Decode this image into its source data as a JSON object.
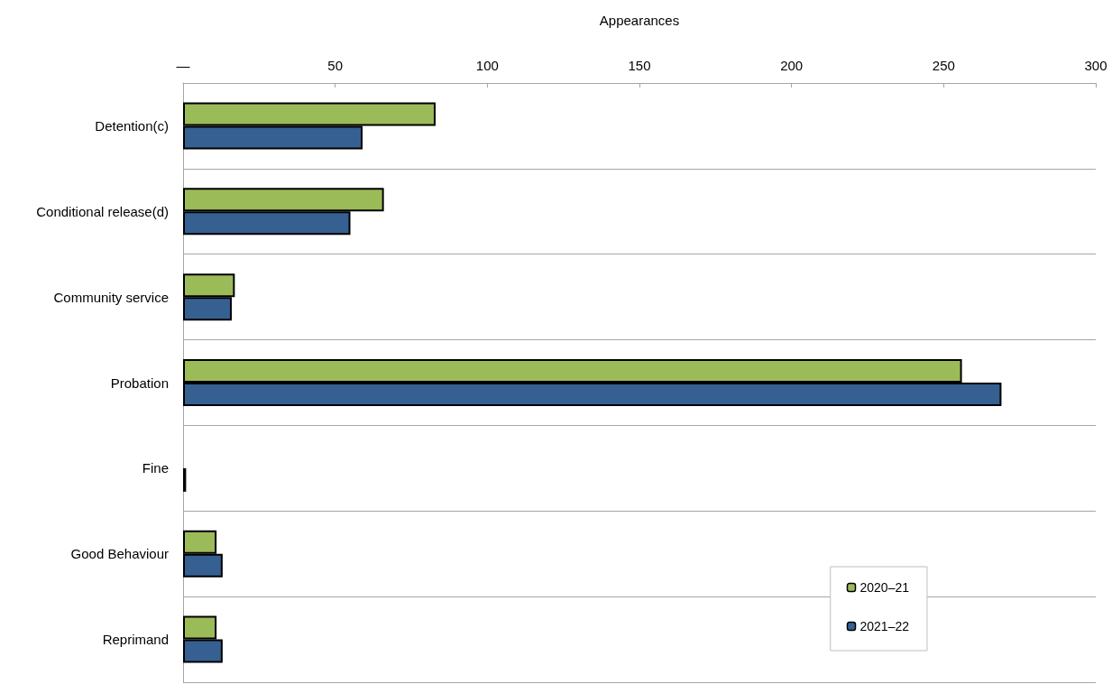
{
  "chart_data": {
    "type": "bar",
    "orientation": "horizontal",
    "xlabel": "Appearances",
    "categories": [
      "Detention(c)",
      "Conditional release(d)",
      "Community service",
      "Probation",
      "Fine",
      "Good Behaviour",
      "Reprimand"
    ],
    "series": [
      {
        "name": "2020–21",
        "color": "#9bbb59",
        "values": [
          83,
          66,
          17,
          256,
          null,
          11,
          11
        ]
      },
      {
        "name": "2021–22",
        "color": "#366092",
        "values": [
          59,
          55,
          16,
          269,
          1,
          13,
          13
        ]
      }
    ],
    "xlim": [
      0,
      300
    ],
    "xticks": [
      {
        "value": 0,
        "label": "—"
      },
      50,
      100,
      150,
      200,
      250,
      300
    ],
    "grid": "y",
    "legend": "bottom right"
  }
}
